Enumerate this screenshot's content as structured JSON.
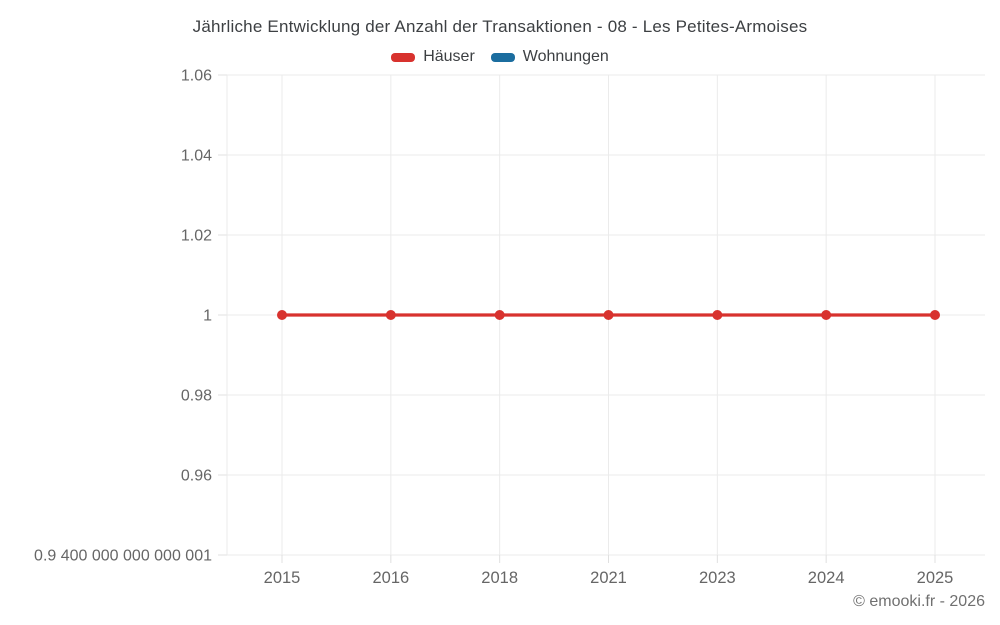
{
  "chart_data": {
    "type": "line",
    "title": "Jährliche Entwicklung der Anzahl der Transaktionen - 08 - Les Petites-Armoises",
    "x_categories": [
      "2015",
      "2016",
      "2018",
      "2021",
      "2023",
      "2024",
      "2025"
    ],
    "series": [
      {
        "name": "Häuser",
        "color": "#d8322e",
        "values": [
          1,
          1,
          1,
          1,
          1,
          1,
          1
        ]
      },
      {
        "name": "Wohnungen",
        "color": "#1b6d9f",
        "values": []
      }
    ],
    "y_ticks": [
      {
        "label": "1.06",
        "value": 1.06
      },
      {
        "label": "1.04",
        "value": 1.04
      },
      {
        "label": "1.02",
        "value": 1.02
      },
      {
        "label": "1",
        "value": 1
      },
      {
        "label": "0.98",
        "value": 0.98
      },
      {
        "label": "0.96",
        "value": 0.96
      },
      {
        "label": "0.9 400 000 000 000 001",
        "value": 0.9400000000000001
      }
    ],
    "ylim": [
      0.9400000000000001,
      1.06
    ],
    "xlabel": "",
    "ylabel": "",
    "grid": true,
    "legend_position": "top",
    "marker": "circle",
    "marker_radius": 5,
    "line_width": 3.2
  },
  "footer": {
    "copyright": "© emooki.fr - 2026"
  },
  "colors": {
    "background": "#ffffff",
    "grid": "#ebebeb",
    "axis_line": "#e0e0e0",
    "tick_text": "#666666",
    "title_text": "#3d4043",
    "copyright_text": "#707070"
  }
}
